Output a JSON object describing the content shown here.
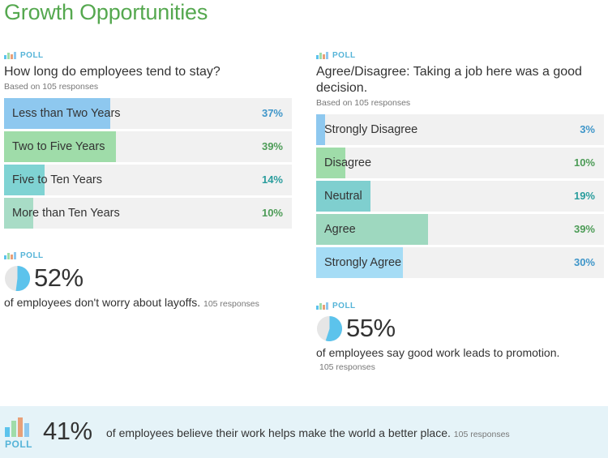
{
  "page": {
    "title": "Growth Opportunities"
  },
  "poll_tag": "POLL",
  "poll1": {
    "question": "How long do employees tend to stay?",
    "based_on": "Based on 105 responses",
    "options": [
      {
        "label": "Less than Two Years",
        "pct_text": "37%",
        "value": 37,
        "fill": "#8ec8ef",
        "pct_color": "#3f96c9"
      },
      {
        "label": "Two to Five Years",
        "pct_text": "39%",
        "value": 39,
        "fill": "#9fdca9",
        "pct_color": "#4d9c57"
      },
      {
        "label": "Five to Ten Years",
        "pct_text": "14%",
        "value": 14,
        "fill": "#7fd3d3",
        "pct_color": "#2a9d9d"
      },
      {
        "label": "More than Ten Years",
        "pct_text": "10%",
        "value": 10,
        "fill": "#a8dcc6",
        "pct_color": "#4d9c57"
      }
    ]
  },
  "stat1": {
    "value": "52%",
    "fraction": 0.52,
    "text": "of employees don't worry about layoffs.",
    "responses": "105 responses"
  },
  "poll2": {
    "question": "Agree/Disagree: Taking a job here was a good decision.",
    "based_on": "Based on 105 responses",
    "options": [
      {
        "label": "Strongly Disagree",
        "pct_text": "3%",
        "value": 3,
        "fill": "#8ec8ef",
        "pct_color": "#3f96c9"
      },
      {
        "label": "Disagree",
        "pct_text": "10%",
        "value": 10,
        "fill": "#9fdca9",
        "pct_color": "#4d9c57"
      },
      {
        "label": "Neutral",
        "pct_text": "19%",
        "value": 19,
        "fill": "#7fcfcf",
        "pct_color": "#2a9d9d"
      },
      {
        "label": "Agree",
        "pct_text": "39%",
        "value": 39,
        "fill": "#9ed8bf",
        "pct_color": "#4d9c57"
      },
      {
        "label": "Strongly Agree",
        "pct_text": "30%",
        "value": 30,
        "fill": "#a5dcf5",
        "pct_color": "#3f96c9"
      }
    ]
  },
  "stat2": {
    "value": "55%",
    "fraction": 0.55,
    "text": "of employees say good work leads to promotion.",
    "responses": "105 responses"
  },
  "footer": {
    "poll_word": "POLL",
    "value": "41%",
    "text": "of employees believe their work helps make the world a better place.",
    "responses": "105 responses"
  },
  "colors": {
    "title_green": "#55a84f",
    "poll_blue": "#55b4d8",
    "pie_fill": "#5cc3ec",
    "pie_empty": "#e6e6e6",
    "banner_bg": "#e5f3f8",
    "icon_bars": [
      "#8ec8ef",
      "#9fdca9",
      "#e8a078",
      "#5cc3ec"
    ]
  }
}
